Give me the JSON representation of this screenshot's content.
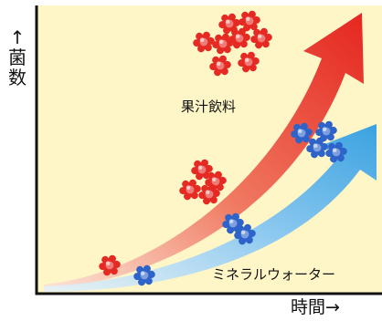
{
  "axis": {
    "ylabel_arrow": "↑",
    "ylabel_chars": [
      "菌",
      "数"
    ],
    "xlabel": "時間→"
  },
  "series": [
    {
      "label": "果汁飲料",
      "color": "#e8332b",
      "bacteria_color": "#e52a23"
    },
    {
      "label": "ミネラルウォーター",
      "color": "#4aa6e0",
      "bacteria_color": "#2e64c9"
    }
  ],
  "background_color": "#fff6c8"
}
